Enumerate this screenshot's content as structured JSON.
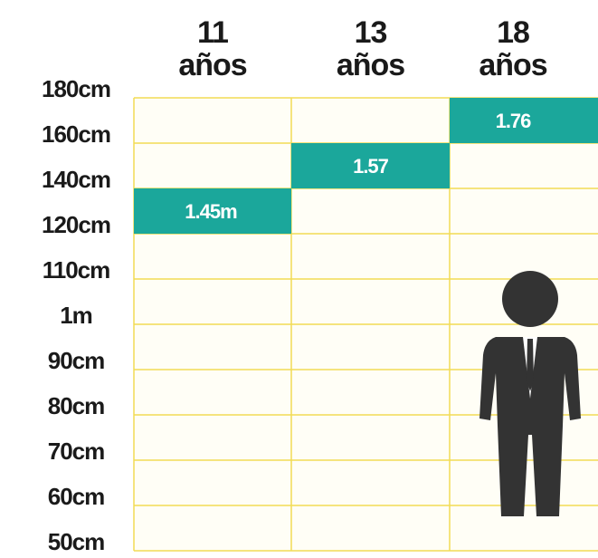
{
  "row_labels": [
    "180cm",
    "160cm",
    "140cm",
    "120cm",
    "110cm",
    "1m",
    "90cm",
    "80cm",
    "70cm",
    "60cm",
    "50cm"
  ],
  "columns": [
    {
      "number": "11",
      "unit": "años",
      "value_label": "1.45m"
    },
    {
      "number": "13",
      "unit": "años",
      "value_label": "1.57"
    },
    {
      "number": "18",
      "unit": "años",
      "value_label": "1.76"
    }
  ]
}
